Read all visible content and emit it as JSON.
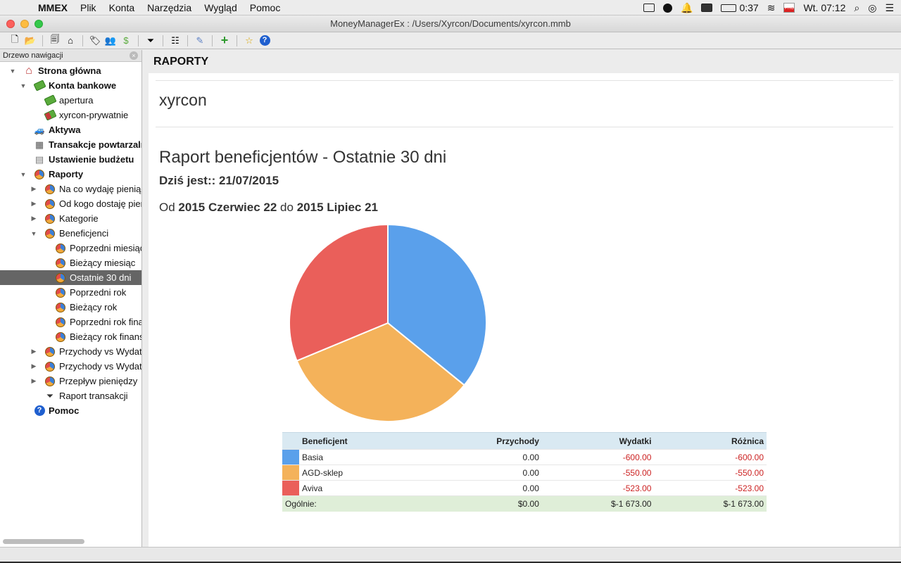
{
  "menubar": {
    "items": [
      "MMEX",
      "Plik",
      "Konta",
      "Narzędzia",
      "Wygląd",
      "Pomoc"
    ],
    "time_remaining": "0:37",
    "clock": "Wt. 07:12"
  },
  "window": {
    "title": "MoneyManagerEx : /Users/Xyrcon/Documents/xyrcon.mmb"
  },
  "sidebar": {
    "header": "Drzewo nawigacji",
    "nodes": [
      {
        "label": "Strona główna",
        "bold": true,
        "level": 0,
        "toggle": "open",
        "icon": "home-icon"
      },
      {
        "label": "Konta bankowe",
        "bold": true,
        "level": 1,
        "toggle": "open",
        "icon": "money-icon"
      },
      {
        "label": "apertura",
        "bold": false,
        "level": 2,
        "toggle": "",
        "icon": "money-icon"
      },
      {
        "label": "xyrcon-prywatnie",
        "bold": false,
        "level": 2,
        "toggle": "",
        "icon": "money-closed-icon"
      },
      {
        "label": "Aktywa",
        "bold": true,
        "level": 1,
        "toggle": "",
        "icon": "car-icon"
      },
      {
        "label": "Transakcje powtarzalne",
        "bold": true,
        "level": 1,
        "toggle": "",
        "icon": "calendar-icon"
      },
      {
        "label": "Ustawienie budżetu",
        "bold": true,
        "level": 1,
        "toggle": "",
        "icon": "budget-chart-icon"
      },
      {
        "label": "Raporty",
        "bold": true,
        "level": 1,
        "toggle": "open",
        "icon": "pie-icon"
      },
      {
        "label": "Na co wydaję pieniądze",
        "bold": false,
        "level": 2,
        "toggle": "closed",
        "icon": "pie-icon"
      },
      {
        "label": "Od kogo dostaję pieniądze",
        "bold": false,
        "level": 2,
        "toggle": "closed",
        "icon": "pie-icon"
      },
      {
        "label": "Kategorie",
        "bold": false,
        "level": 2,
        "toggle": "closed",
        "icon": "pie-icon"
      },
      {
        "label": "Beneficjenci",
        "bold": false,
        "level": 2,
        "toggle": "open",
        "icon": "pie-icon"
      },
      {
        "label": "Poprzedni miesiąc",
        "bold": false,
        "level": 3,
        "toggle": "",
        "icon": "pie-icon"
      },
      {
        "label": "Bieżący miesiąc",
        "bold": false,
        "level": 3,
        "toggle": "",
        "icon": "pie-icon"
      },
      {
        "label": "Ostatnie 30 dni",
        "bold": false,
        "level": 3,
        "toggle": "",
        "icon": "pie-icon",
        "selected": true
      },
      {
        "label": "Poprzedni rok",
        "bold": false,
        "level": 3,
        "toggle": "",
        "icon": "pie-icon"
      },
      {
        "label": "Bieżący rok",
        "bold": false,
        "level": 3,
        "toggle": "",
        "icon": "pie-icon"
      },
      {
        "label": "Poprzedni rok finansowy",
        "bold": false,
        "level": 3,
        "toggle": "",
        "icon": "pie-icon"
      },
      {
        "label": "Bieżący rok finansowy",
        "bold": false,
        "level": 3,
        "toggle": "",
        "icon": "pie-icon"
      },
      {
        "label": "Przychody vs Wydatki",
        "bold": false,
        "level": 2,
        "toggle": "closed",
        "icon": "pie-icon"
      },
      {
        "label": "Przychody vs Wydatki",
        "bold": false,
        "level": 2,
        "toggle": "closed",
        "icon": "pie-icon"
      },
      {
        "label": "Przepływ pieniędzy",
        "bold": false,
        "level": 2,
        "toggle": "closed",
        "icon": "pie-icon"
      },
      {
        "label": "Raport transakcji",
        "bold": false,
        "level": 2,
        "toggle": "",
        "icon": "filter-icon"
      },
      {
        "label": "Pomoc",
        "bold": true,
        "level": 1,
        "toggle": "",
        "icon": "help-icon"
      }
    ]
  },
  "main": {
    "header": "RAPORTY",
    "report": {
      "name": "xyrcon",
      "title": "Raport beneficjentów - Ostatnie 30 dni",
      "today": "Dziś jest:: 21/07/2015",
      "range_prefix": "Od",
      "range_from": "2015 Czerwiec 22",
      "range_mid": "do",
      "range_to": "2015 Lipiec 21"
    },
    "table": {
      "columns": [
        "Beneficjent",
        "Przychody",
        "Wydatki",
        "Różnica"
      ],
      "rows": [
        {
          "payee": "Basia",
          "income": "0.00",
          "expense": "-600.00",
          "diff": "-600.00",
          "color": "#5aa0eb"
        },
        {
          "payee": "AGD-sklep",
          "income": "0.00",
          "expense": "-550.00",
          "diff": "-550.00",
          "color": "#f4b25a"
        },
        {
          "payee": "Aviva",
          "income": "0.00",
          "expense": "-523.00",
          "diff": "-523.00",
          "color": "#ea5f5a"
        }
      ],
      "total": {
        "label": "Ogólnie:",
        "income": "$0.00",
        "expense": "$-1 673.00",
        "diff": "$-1 673.00"
      }
    }
  },
  "chart_data": {
    "type": "pie",
    "categories": [
      "Basia",
      "AGD-sklep",
      "Aviva"
    ],
    "values": [
      600,
      550,
      523
    ],
    "colors": [
      "#5aa0eb",
      "#f4b25a",
      "#ea5f5a"
    ]
  }
}
